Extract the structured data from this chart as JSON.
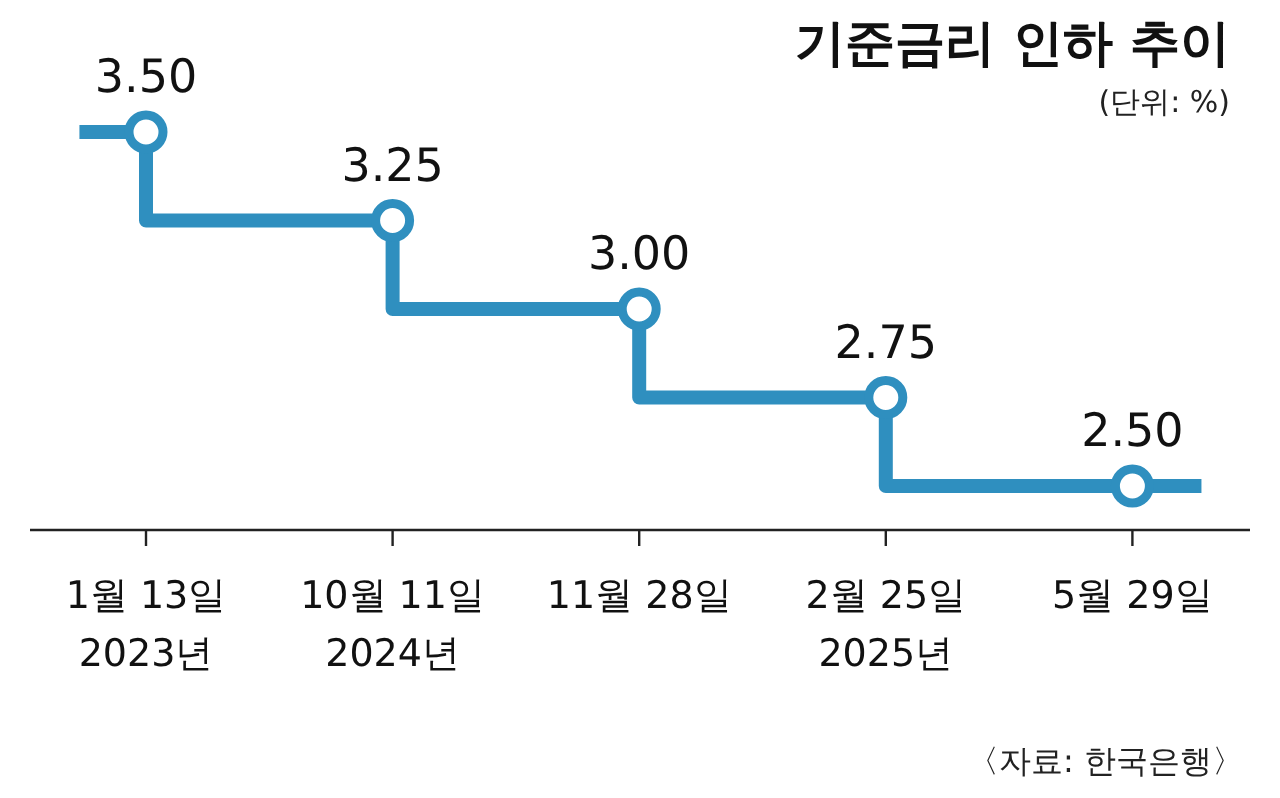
{
  "chart_data": {
    "type": "step",
    "title": "기준금리 인하 추이",
    "subtitle": "(단위: %)",
    "categories": [
      "1월 13일\n2023년",
      "10월 11일\n2024년",
      "11월 28일",
      "2월 25일\n2025년",
      "5월 29일"
    ],
    "values": [
      3.5,
      3.25,
      3.0,
      2.75,
      2.5
    ],
    "value_labels": [
      "3.50",
      "3.25",
      "3.00",
      "2.75",
      "2.50"
    ],
    "color": "#2f8fbf",
    "marker": "circle",
    "annotations": [
      "〈자료: 한국은행〉"
    ]
  }
}
